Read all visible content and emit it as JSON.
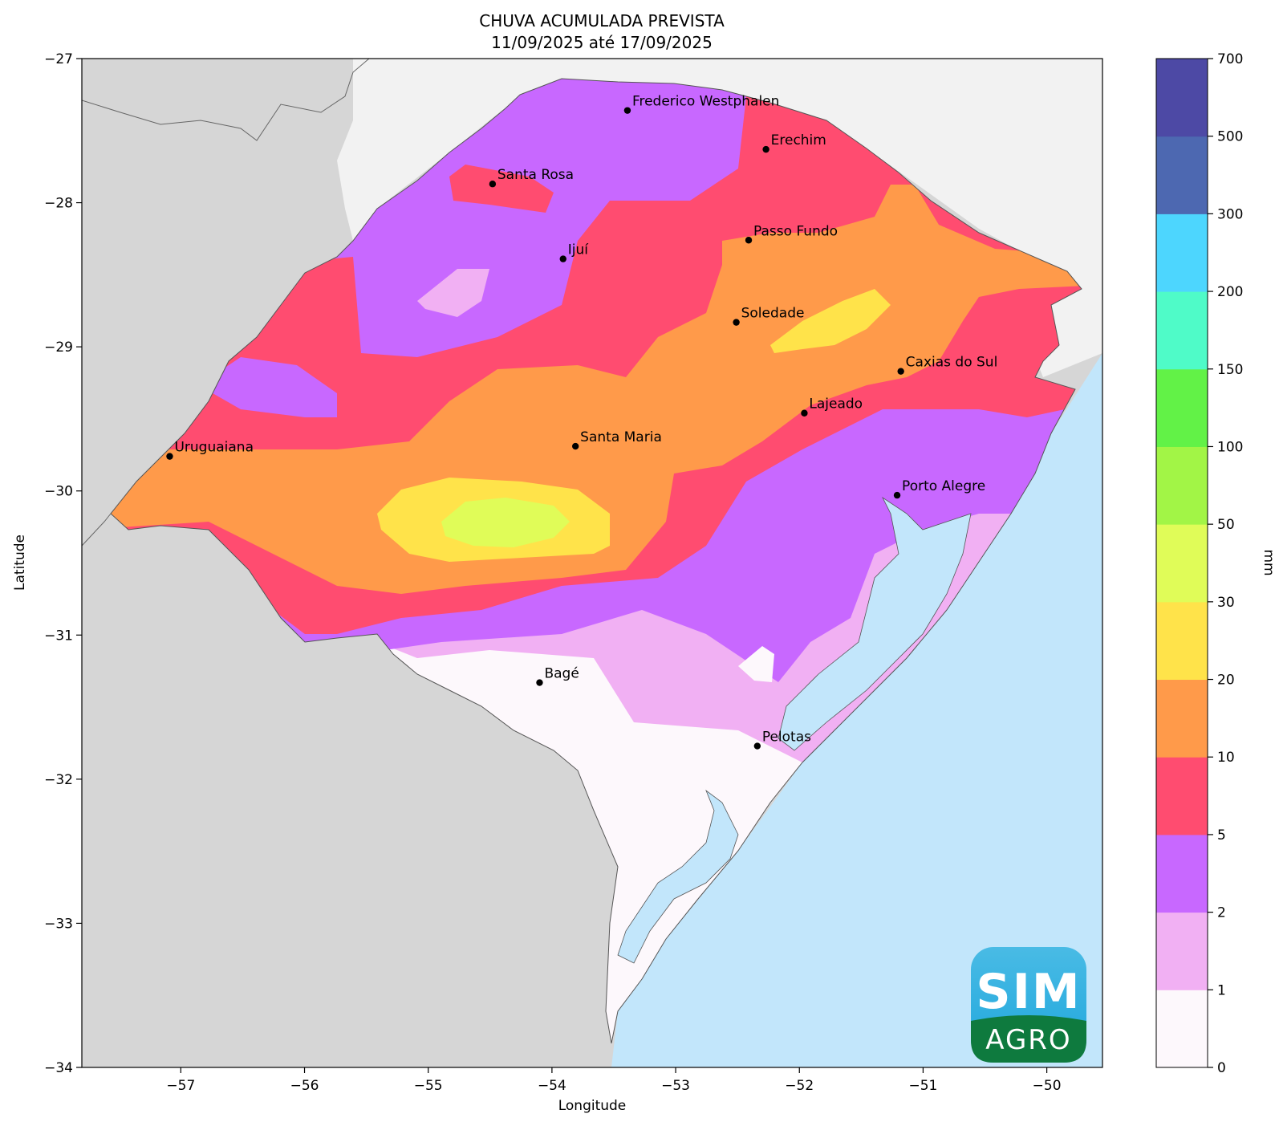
{
  "title": {
    "line1": "CHUVA ACUMULADA PREVISTA",
    "line2": "11/09/2025 até 17/09/2025"
  },
  "axes": {
    "xlabel": "Longitude",
    "ylabel": "Latitude",
    "xlim": [
      -57.8,
      -49.55
    ],
    "ylim": [
      -34,
      -27
    ],
    "xticks": [
      -57,
      -56,
      -55,
      -54,
      -53,
      -52,
      -51,
      -50
    ],
    "yticks": [
      -27,
      -28,
      -29,
      -30,
      -31,
      -32,
      -33,
      -34
    ]
  },
  "colorbar": {
    "label": "mm",
    "levels": [
      "0",
      "1",
      "2",
      "5",
      "10",
      "20",
      "30",
      "50",
      "100",
      "150",
      "200",
      "300",
      "500",
      "700"
    ],
    "colors": [
      "#fdf8fc",
      "#f1b0f3",
      "#c868ff",
      "#ff4c70",
      "#ff9a4a",
      "#ffe34a",
      "#e0fc58",
      "#a2f546",
      "#62f247",
      "#4ffbc8",
      "#4dd6fe",
      "#4d68b1",
      "#4d49a5"
    ]
  },
  "colors": {
    "land_outside": "#d6d6d6",
    "land_north": "#f2f2f2",
    "ocean": "#c2e6fb",
    "logo_top": "#1ea6dc",
    "logo_bottom": "#0e7a3e"
  },
  "cities": [
    {
      "name": "Frederico Westphalen",
      "lon": -53.39,
      "lat": -27.36
    },
    {
      "name": "Erechim",
      "lon": -52.27,
      "lat": -27.63
    },
    {
      "name": "Santa Rosa",
      "lon": -54.48,
      "lat": -27.87
    },
    {
      "name": "Passo Fundo",
      "lon": -52.41,
      "lat": -28.26
    },
    {
      "name": "Ijuí",
      "lon": -53.91,
      "lat": -28.39
    },
    {
      "name": "Soledade",
      "lon": -52.51,
      "lat": -28.83
    },
    {
      "name": "Caxias do Sul",
      "lon": -51.18,
      "lat": -29.17
    },
    {
      "name": "Lajeado",
      "lon": -51.96,
      "lat": -29.46
    },
    {
      "name": "Santa Maria",
      "lon": -53.81,
      "lat": -29.69
    },
    {
      "name": "Uruguaiana",
      "lon": -57.09,
      "lat": -29.76
    },
    {
      "name": "Porto Alegre",
      "lon": -51.21,
      "lat": -30.03
    },
    {
      "name": "Bagé",
      "lon": -54.1,
      "lat": -31.33
    },
    {
      "name": "Pelotas",
      "lon": -52.34,
      "lat": -31.77
    }
  ],
  "logo": {
    "top_text": "SIM",
    "bottom_text": "AGRO"
  }
}
